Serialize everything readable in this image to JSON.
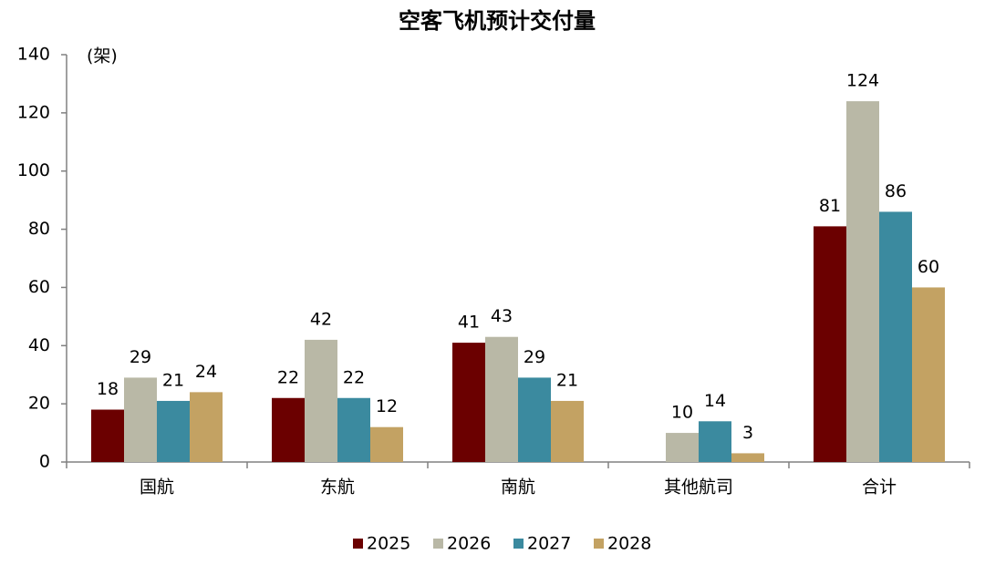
{
  "chart_data": {
    "type": "bar",
    "title": "空客飞机预计交付量",
    "y_unit_label": "(架)",
    "categories": [
      "国航",
      "东航",
      "南航",
      "其他航司",
      "合计"
    ],
    "series": [
      {
        "name": "2025",
        "color": "#6b0000",
        "values": [
          18,
          22,
          41,
          null,
          81
        ]
      },
      {
        "name": "2026",
        "color": "#b9b8a6",
        "values": [
          29,
          42,
          43,
          10,
          124
        ]
      },
      {
        "name": "2027",
        "color": "#3b8a9f",
        "values": [
          21,
          22,
          29,
          14,
          86
        ]
      },
      {
        "name": "2028",
        "color": "#c3a263",
        "values": [
          24,
          12,
          21,
          3,
          60
        ]
      }
    ],
    "ylim": [
      0,
      140
    ],
    "yticks": [
      0,
      20,
      40,
      60,
      80,
      100,
      120,
      140
    ],
    "grid": false,
    "legend": "bottom"
  }
}
